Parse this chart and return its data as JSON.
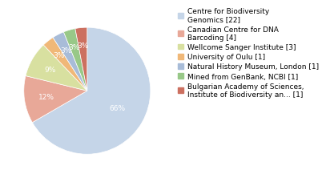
{
  "labels": [
    "Centre for Biodiversity\nGenomics [22]",
    "Canadian Centre for DNA\nBarcoding [4]",
    "Wellcome Sanger Institute [3]",
    "University of Oulu [1]",
    "Natural History Museum, London [1]",
    "Mined from GenBank, NCBI [1]",
    "Bulgarian Academy of Sciences,\nInstitute of Biodiversity an... [1]"
  ],
  "values": [
    22,
    4,
    3,
    1,
    1,
    1,
    1
  ],
  "colors": [
    "#c5d5e8",
    "#e8a898",
    "#d8e0a0",
    "#f0b878",
    "#a8bcd8",
    "#98c888",
    "#cc7060"
  ],
  "pct_labels": [
    "66%",
    "12%",
    "9%",
    "3%",
    "3%",
    "3%",
    "3%"
  ],
  "text_color": "white",
  "pct_fontsize": 6.5,
  "legend_fontsize": 6.5
}
